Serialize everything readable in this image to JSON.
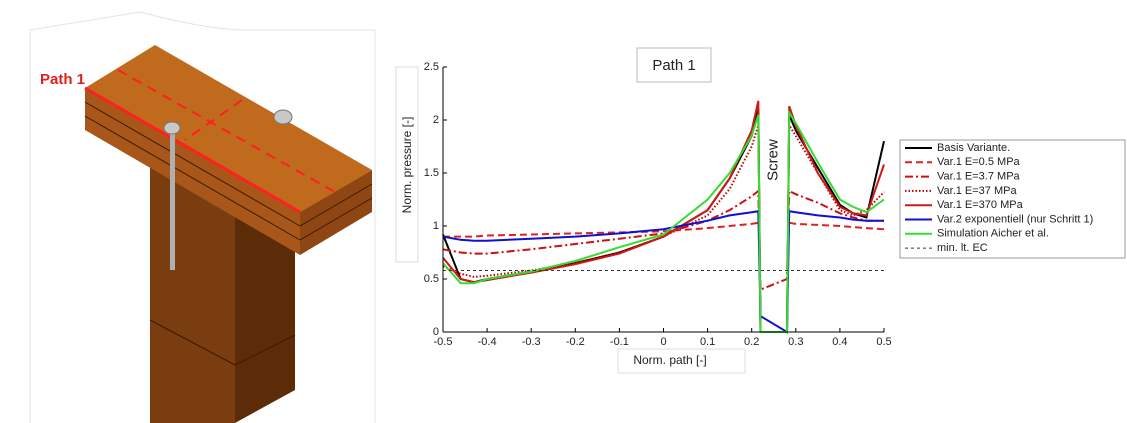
{
  "illustration": {
    "label": "Path 1"
  },
  "chart_data": {
    "type": "line",
    "title": "Path 1",
    "x_label": "Norm. path [-]",
    "y_label": "Norm. pressure [-]",
    "annotations": [
      "Screw"
    ],
    "x": [
      -0.5,
      -0.46,
      -0.43,
      -0.4,
      -0.3,
      -0.2,
      -0.1,
      0,
      0.1,
      0.15,
      0.2,
      0.215,
      0.22,
      0.28,
      0.285,
      0.3,
      0.35,
      0.4,
      0.43,
      0.46,
      0.5
    ],
    "series": [
      {
        "name": "Basis Variante.",
        "color": "#000000",
        "dash": "solid",
        "values": [
          0.92,
          0.5,
          0.47,
          0.5,
          0.57,
          0.65,
          0.75,
          0.9,
          1.15,
          1.45,
          1.85,
          2.1,
          0,
          0,
          2.05,
          1.9,
          1.55,
          1.2,
          1.12,
          1.08,
          1.8
        ]
      },
      {
        "name": "Var.1 E=0.5 MPa",
        "color": "#e02020",
        "dash": "dashed",
        "values": [
          0.9,
          0.9,
          0.9,
          0.91,
          0.92,
          0.93,
          0.94,
          0.95,
          0.98,
          1.0,
          1.02,
          1.03,
          null,
          null,
          1.03,
          1.02,
          1.01,
          1.0,
          0.99,
          0.98,
          0.97
        ]
      },
      {
        "name": "Var.1 E=3.7 MPa",
        "color": "#cc1010",
        "dash": "dashdot",
        "values": [
          0.78,
          0.75,
          0.74,
          0.74,
          0.78,
          0.83,
          0.88,
          0.93,
          1.05,
          1.15,
          1.28,
          1.33,
          0.4,
          0.5,
          1.33,
          1.3,
          1.22,
          1.12,
          1.08,
          1.05,
          1.05
        ]
      },
      {
        "name": "Var.1 E=37 MPa",
        "color": "#c00000",
        "dash": "dotted",
        "values": [
          0.62,
          0.55,
          0.52,
          0.53,
          0.58,
          0.65,
          0.75,
          0.9,
          1.1,
          1.35,
          1.75,
          1.95,
          0,
          0,
          1.95,
          1.85,
          1.5,
          1.15,
          1.1,
          1.15,
          1.32
        ]
      },
      {
        "name": "Var.1 E=370 MPa",
        "color": "#d01818",
        "dash": "solid",
        "values": [
          0.7,
          0.5,
          0.47,
          0.49,
          0.56,
          0.64,
          0.74,
          0.9,
          1.15,
          1.45,
          1.9,
          2.18,
          0,
          0,
          2.13,
          1.95,
          1.5,
          1.18,
          1.12,
          1.1,
          1.58
        ]
      },
      {
        "name": "Var.2 exponentiell (nur Schritt 1)",
        "color": "#1010d0",
        "dash": "solid",
        "values": [
          0.9,
          0.87,
          0.86,
          0.86,
          0.88,
          0.9,
          0.93,
          0.97,
          1.05,
          1.1,
          1.13,
          1.14,
          0.15,
          0,
          1.14,
          1.13,
          1.1,
          1.08,
          1.06,
          1.05,
          1.05
        ]
      },
      {
        "name": "Simulation Aicher et al.",
        "color": "#33dd33",
        "dash": "solid",
        "values": [
          0.65,
          0.46,
          0.46,
          0.5,
          0.57,
          0.67,
          0.8,
          0.92,
          1.25,
          1.5,
          1.85,
          2.05,
          0,
          0,
          2.07,
          1.97,
          1.6,
          1.25,
          1.18,
          1.13,
          1.25
        ]
      },
      {
        "name": "min. lt. EC",
        "color": "#333333",
        "dash": "shortdash",
        "values": [
          0.58,
          0.58,
          0.58,
          0.58,
          0.58,
          0.58,
          0.58,
          0.58,
          0.58,
          0.58,
          0.58,
          0.58,
          0.58,
          0.58,
          0.58,
          0.58,
          0.58,
          0.58,
          0.58,
          0.58,
          0.58
        ]
      }
    ],
    "xlim": [
      -0.5,
      0.5
    ],
    "xticks": [
      -0.5,
      -0.4,
      -0.3,
      -0.2,
      -0.1,
      0,
      0.1,
      0.2,
      0.3,
      0.4,
      0.5
    ],
    "ylim": [
      0,
      2.5
    ],
    "yticks": [
      0,
      0.5,
      1,
      1.5,
      2,
      2.5
    ],
    "grid": false,
    "legend": "right"
  }
}
